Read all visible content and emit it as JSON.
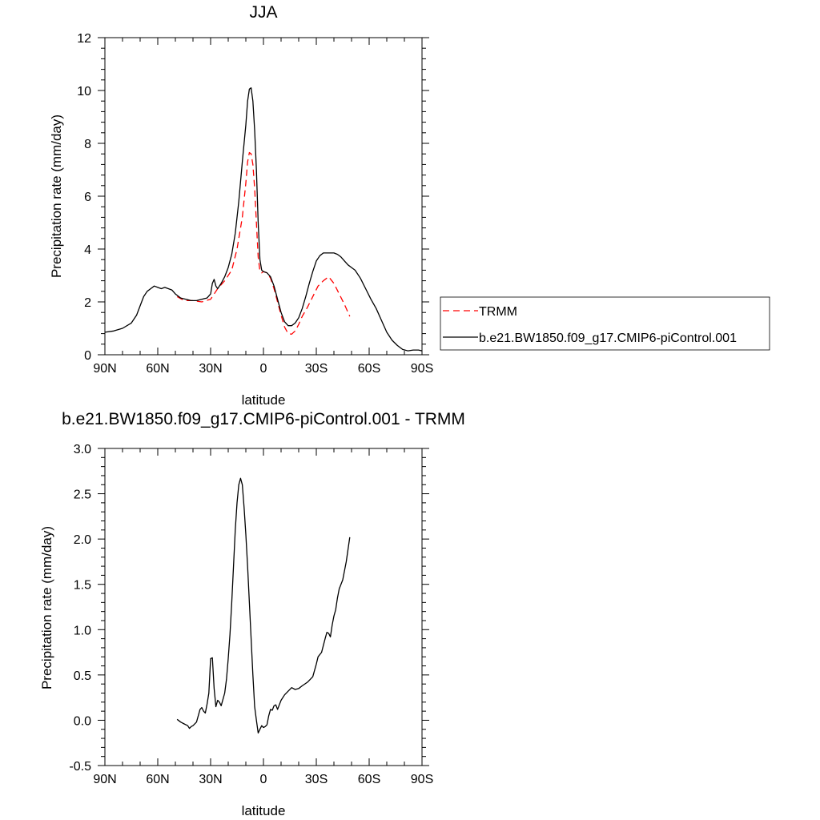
{
  "chart_data": [
    {
      "type": "line",
      "title": "JJA",
      "xlabel": "latitude",
      "ylabel": "Precipitation rate (mm/day)",
      "xlim": [
        90,
        -90
      ],
      "ylim": [
        0,
        12
      ],
      "x_ticks": [
        90,
        60,
        30,
        0,
        -30,
        -60,
        -90
      ],
      "x_tick_labels": [
        "90N",
        "60N",
        "30N",
        "0",
        "30S",
        "60S",
        "90S"
      ],
      "y_ticks": [
        0,
        2,
        4,
        6,
        8,
        10,
        12
      ],
      "y_tick_labels": [
        "0",
        "2",
        "4",
        "6",
        "8",
        "10",
        "12"
      ],
      "grid": false,
      "legend_placement": "right",
      "series": [
        {
          "name": "TRMM",
          "color": "#ff0000",
          "style": "dashed",
          "x": [
            49,
            45,
            40,
            35,
            30,
            26,
            22,
            18,
            15,
            12,
            10,
            9,
            8,
            7,
            6,
            5,
            4,
            3,
            2,
            1,
            0,
            -2,
            -4,
            -6,
            -8,
            -10,
            -12,
            -14,
            -16,
            -18,
            -20,
            -22,
            -25,
            -28,
            -31,
            -34,
            -37,
            -40,
            -43,
            -46,
            -49
          ],
          "y": [
            2.2,
            2.05,
            2.05,
            2.0,
            2.1,
            2.5,
            2.8,
            3.2,
            4.0,
            5.2,
            6.5,
            7.3,
            7.65,
            7.6,
            7.2,
            6.3,
            5.0,
            3.7,
            3.15,
            3.1,
            3.15,
            3.1,
            2.9,
            2.5,
            2.0,
            1.5,
            1.05,
            0.8,
            0.78,
            0.9,
            1.15,
            1.45,
            1.8,
            2.2,
            2.6,
            2.8,
            2.95,
            2.7,
            2.3,
            1.9,
            1.45
          ]
        },
        {
          "name": "b.e21.BW1850.f09_g17.CMIP6-piControl.001",
          "color": "#000000",
          "style": "solid",
          "x": [
            90,
            85,
            80,
            75,
            72,
            70,
            68,
            66,
            64,
            62,
            60,
            58,
            56,
            54,
            52,
            50,
            47,
            44,
            41,
            38,
            35,
            32,
            30,
            29,
            28,
            27,
            26,
            24,
            22,
            20,
            18,
            16,
            14,
            12,
            10,
            9,
            8,
            7,
            6,
            5,
            4,
            3,
            2,
            1,
            0,
            -2,
            -4,
            -6,
            -8,
            -10,
            -12,
            -14,
            -16,
            -18,
            -20,
            -22,
            -24,
            -26,
            -28,
            -30,
            -32,
            -34,
            -36,
            -38,
            -40,
            -42,
            -44,
            -46,
            -48,
            -50,
            -52,
            -55,
            -58,
            -61,
            -64,
            -67,
            -70,
            -73,
            -76,
            -79,
            -82,
            -85,
            -88,
            -90
          ],
          "y": [
            0.85,
            0.9,
            1.0,
            1.2,
            1.5,
            1.85,
            2.2,
            2.4,
            2.5,
            2.6,
            2.55,
            2.5,
            2.55,
            2.5,
            2.45,
            2.3,
            2.15,
            2.1,
            2.05,
            2.05,
            2.1,
            2.15,
            2.3,
            2.7,
            2.85,
            2.6,
            2.5,
            2.7,
            2.95,
            3.3,
            3.8,
            4.6,
            5.8,
            7.3,
            8.7,
            9.6,
            10.05,
            10.1,
            9.6,
            8.5,
            7.0,
            5.0,
            3.6,
            3.2,
            3.15,
            3.1,
            2.95,
            2.6,
            2.1,
            1.6,
            1.25,
            1.1,
            1.1,
            1.2,
            1.4,
            1.75,
            2.2,
            2.7,
            3.15,
            3.55,
            3.75,
            3.85,
            3.85,
            3.85,
            3.85,
            3.8,
            3.7,
            3.55,
            3.4,
            3.3,
            3.2,
            2.9,
            2.5,
            2.1,
            1.75,
            1.3,
            0.85,
            0.55,
            0.35,
            0.2,
            0.15,
            0.18,
            0.18,
            0.15
          ]
        }
      ]
    },
    {
      "type": "line",
      "title": "b.e21.BW1850.f09_g17.CMIP6-piControl.001 - TRMM",
      "xlabel": "latitude",
      "ylabel": "Precipitation rate (mm/day)",
      "xlim": [
        90,
        -90
      ],
      "ylim": [
        -0.5,
        3.0
      ],
      "x_ticks": [
        90,
        60,
        30,
        0,
        -30,
        -60,
        -90
      ],
      "x_tick_labels": [
        "90N",
        "60N",
        "30N",
        "0",
        "30S",
        "60S",
        "90S"
      ],
      "y_ticks": [
        -0.5,
        0.0,
        0.5,
        1.0,
        1.5,
        2.0,
        2.5,
        3.0
      ],
      "y_tick_labels": [
        "-0.5",
        "0.0",
        "0.5",
        "1.0",
        "1.5",
        "2.0",
        "2.5",
        "3.0"
      ],
      "grid": false,
      "series": [
        {
          "color": "#000000",
          "style": "solid",
          "x": [
            49,
            47,
            45,
            43,
            42,
            41,
            40,
            38,
            37,
            36,
            35,
            34,
            33,
            32,
            31,
            30,
            29,
            28,
            27,
            26,
            25,
            24,
            23,
            22,
            21,
            20,
            19,
            18,
            17,
            16,
            15,
            14,
            13,
            12,
            11,
            10,
            9,
            8,
            7,
            6,
            5,
            4,
            3,
            2,
            1,
            0,
            -1,
            -2,
            -3,
            -4,
            -5,
            -6,
            -7,
            -8,
            -9,
            -10,
            -12,
            -14,
            -16,
            -18,
            -20,
            -22,
            -25,
            -28,
            -30,
            -31,
            -33,
            -35,
            -36,
            -37,
            -38,
            -39,
            -40,
            -41,
            -42,
            -43,
            -45,
            -47,
            -49
          ],
          "y": [
            0.01,
            -0.02,
            -0.04,
            -0.06,
            -0.09,
            -0.07,
            -0.06,
            -0.02,
            0.05,
            0.12,
            0.14,
            0.1,
            0.08,
            0.18,
            0.3,
            0.68,
            0.69,
            0.35,
            0.15,
            0.22,
            0.2,
            0.16,
            0.23,
            0.3,
            0.45,
            0.68,
            0.95,
            1.3,
            1.7,
            2.1,
            2.4,
            2.6,
            2.67,
            2.6,
            2.35,
            2.05,
            1.7,
            1.3,
            0.9,
            0.5,
            0.15,
            0.0,
            -0.14,
            -0.1,
            -0.06,
            -0.08,
            -0.07,
            -0.05,
            0.05,
            0.12,
            0.11,
            0.16,
            0.17,
            0.12,
            0.17,
            0.22,
            0.28,
            0.32,
            0.36,
            0.34,
            0.35,
            0.38,
            0.42,
            0.48,
            0.62,
            0.7,
            0.75,
            0.9,
            0.97,
            0.96,
            0.92,
            1.05,
            1.15,
            1.22,
            1.35,
            1.45,
            1.55,
            1.75,
            2.02
          ]
        }
      ]
    }
  ],
  "legend": {
    "items": [
      {
        "label": "TRMM",
        "color": "#ff0000",
        "style": "dashed"
      },
      {
        "label": "b.e21.BW1850.f09_g17.CMIP6-piControl.001",
        "color": "#000000",
        "style": "solid"
      }
    ]
  }
}
